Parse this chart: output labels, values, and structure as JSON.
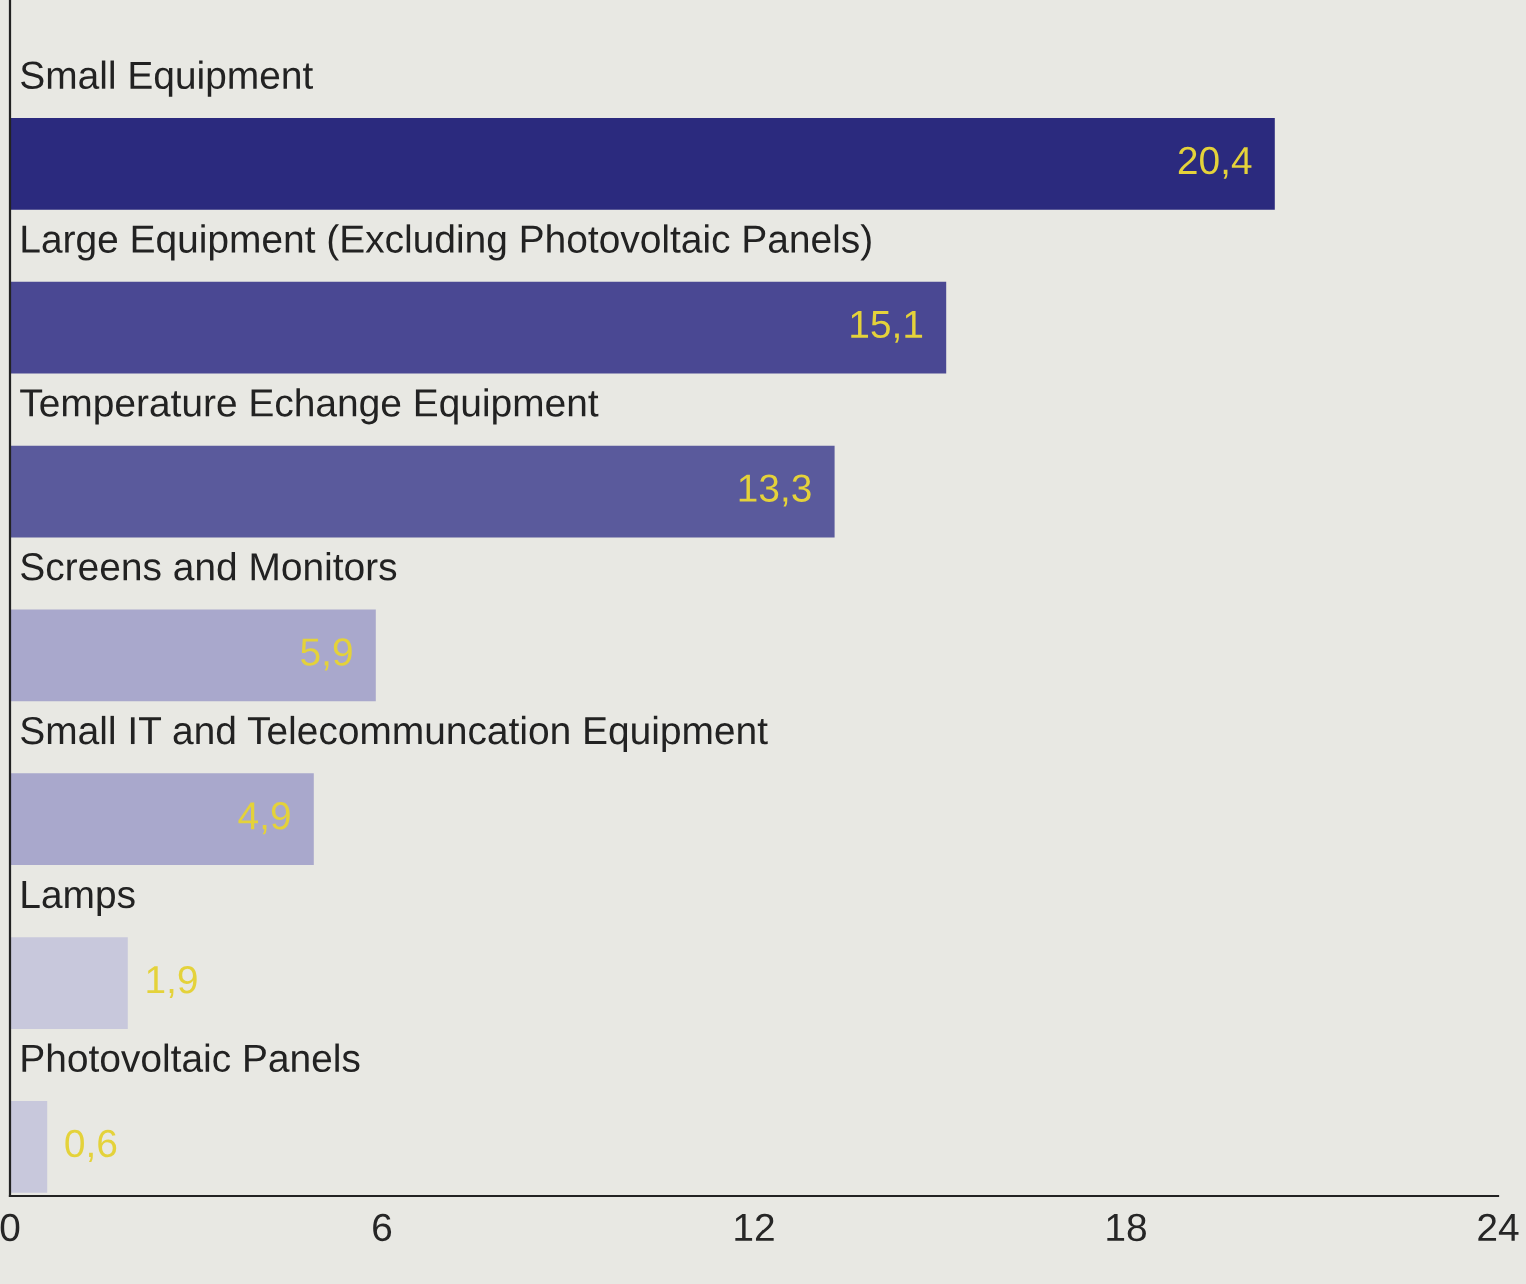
{
  "chart_data": {
    "type": "bar",
    "orientation": "horizontal",
    "categories": [
      "Small Equipment",
      "Large Equipment (Excluding Photovoltaic Panels)",
      "Temperature Echange Equipment",
      "Screens and Monitors",
      "Small IT and Telecommuncation Equipment",
      "Lamps",
      "Photovoltaic Panels"
    ],
    "values": [
      20.4,
      15.1,
      13.3,
      5.9,
      4.9,
      1.9,
      0.6
    ],
    "value_labels": [
      "20,4",
      "15,1",
      "13,3",
      "5,9",
      "4,9",
      "1,9",
      "0,6"
    ],
    "colors": [
      "#2b2a7e",
      "#4a4893",
      "#5a5a9c",
      "#a9a8cc",
      "#a9a8cc",
      "#c8c8dc",
      "#c8c8dc"
    ],
    "xlim": [
      0,
      24
    ],
    "xticks": [
      0,
      6,
      12,
      18,
      24
    ],
    "grid": false,
    "legend": false
  }
}
